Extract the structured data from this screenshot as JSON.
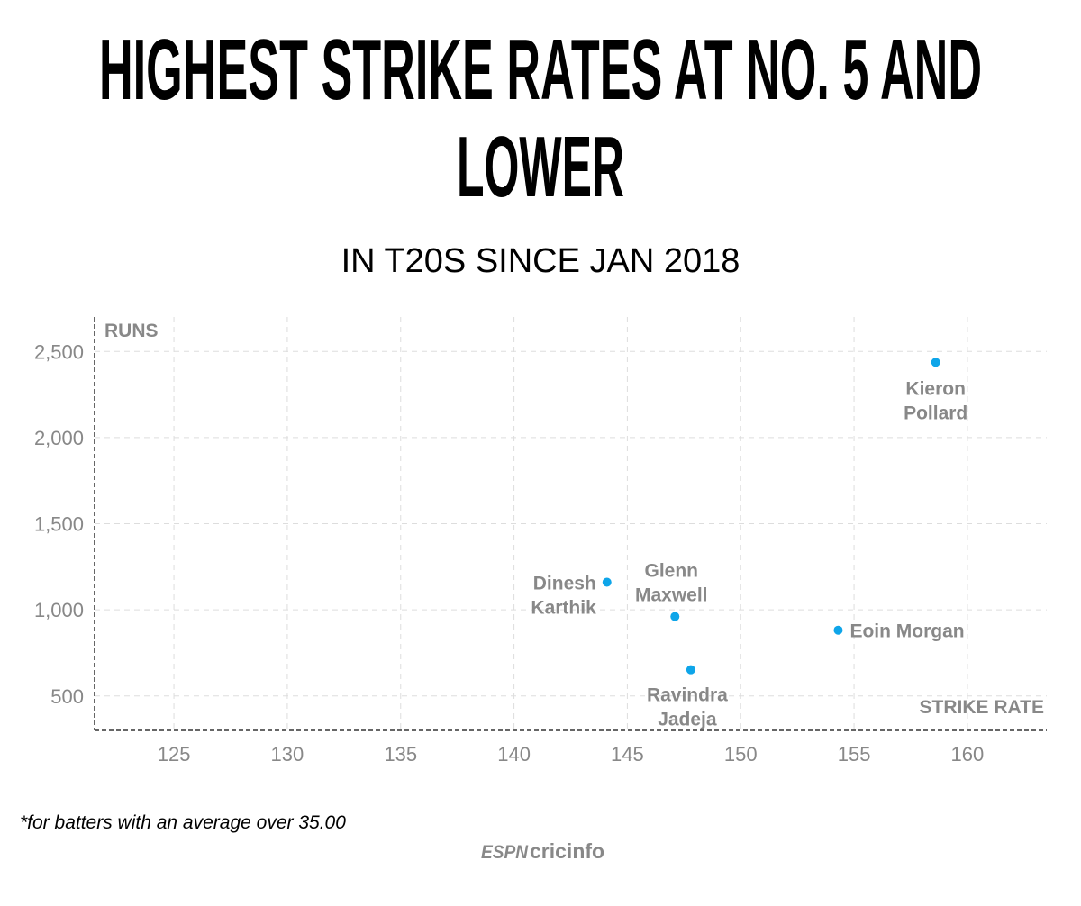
{
  "chart_data": {
    "type": "scatter",
    "title_lines": [
      "HIGHEST STRIKE RATES AT NO. 5 AND",
      "LOWER"
    ],
    "subtitle": "IN T20S SINCE JAN 2018",
    "xlabel": "STRIKE RATE",
    "ylabel": "RUNS",
    "xlim": [
      121.5,
      163.5
    ],
    "ylim": [
      300,
      2700
    ],
    "xticks": [
      125,
      130,
      135,
      140,
      145,
      150,
      155,
      160
    ],
    "yticks": [
      500,
      1000,
      1500,
      2000,
      2500
    ],
    "ytick_labels": [
      "500",
      "1,000",
      "1,500",
      "2,000",
      "2,500"
    ],
    "grid": true,
    "point_color": "#0ea5e9",
    "points": [
      {
        "name": [
          "Kieron",
          "Pollard"
        ],
        "x": 158.6,
        "y": 2437
      },
      {
        "name": [
          "Dinesh",
          "Karthik"
        ],
        "x": 144.1,
        "y": 1160
      },
      {
        "name": [
          "Glenn",
          "Maxwell"
        ],
        "x": 147.1,
        "y": 961
      },
      {
        "name": [
          "Eoin Morgan"
        ],
        "x": 154.3,
        "y": 882
      },
      {
        "name": [
          "Ravindra",
          "Jadeja"
        ],
        "x": 147.8,
        "y": 652
      }
    ]
  },
  "footnote": "*for batters with an average over 35.00",
  "logo": "ESPN cricinfo"
}
